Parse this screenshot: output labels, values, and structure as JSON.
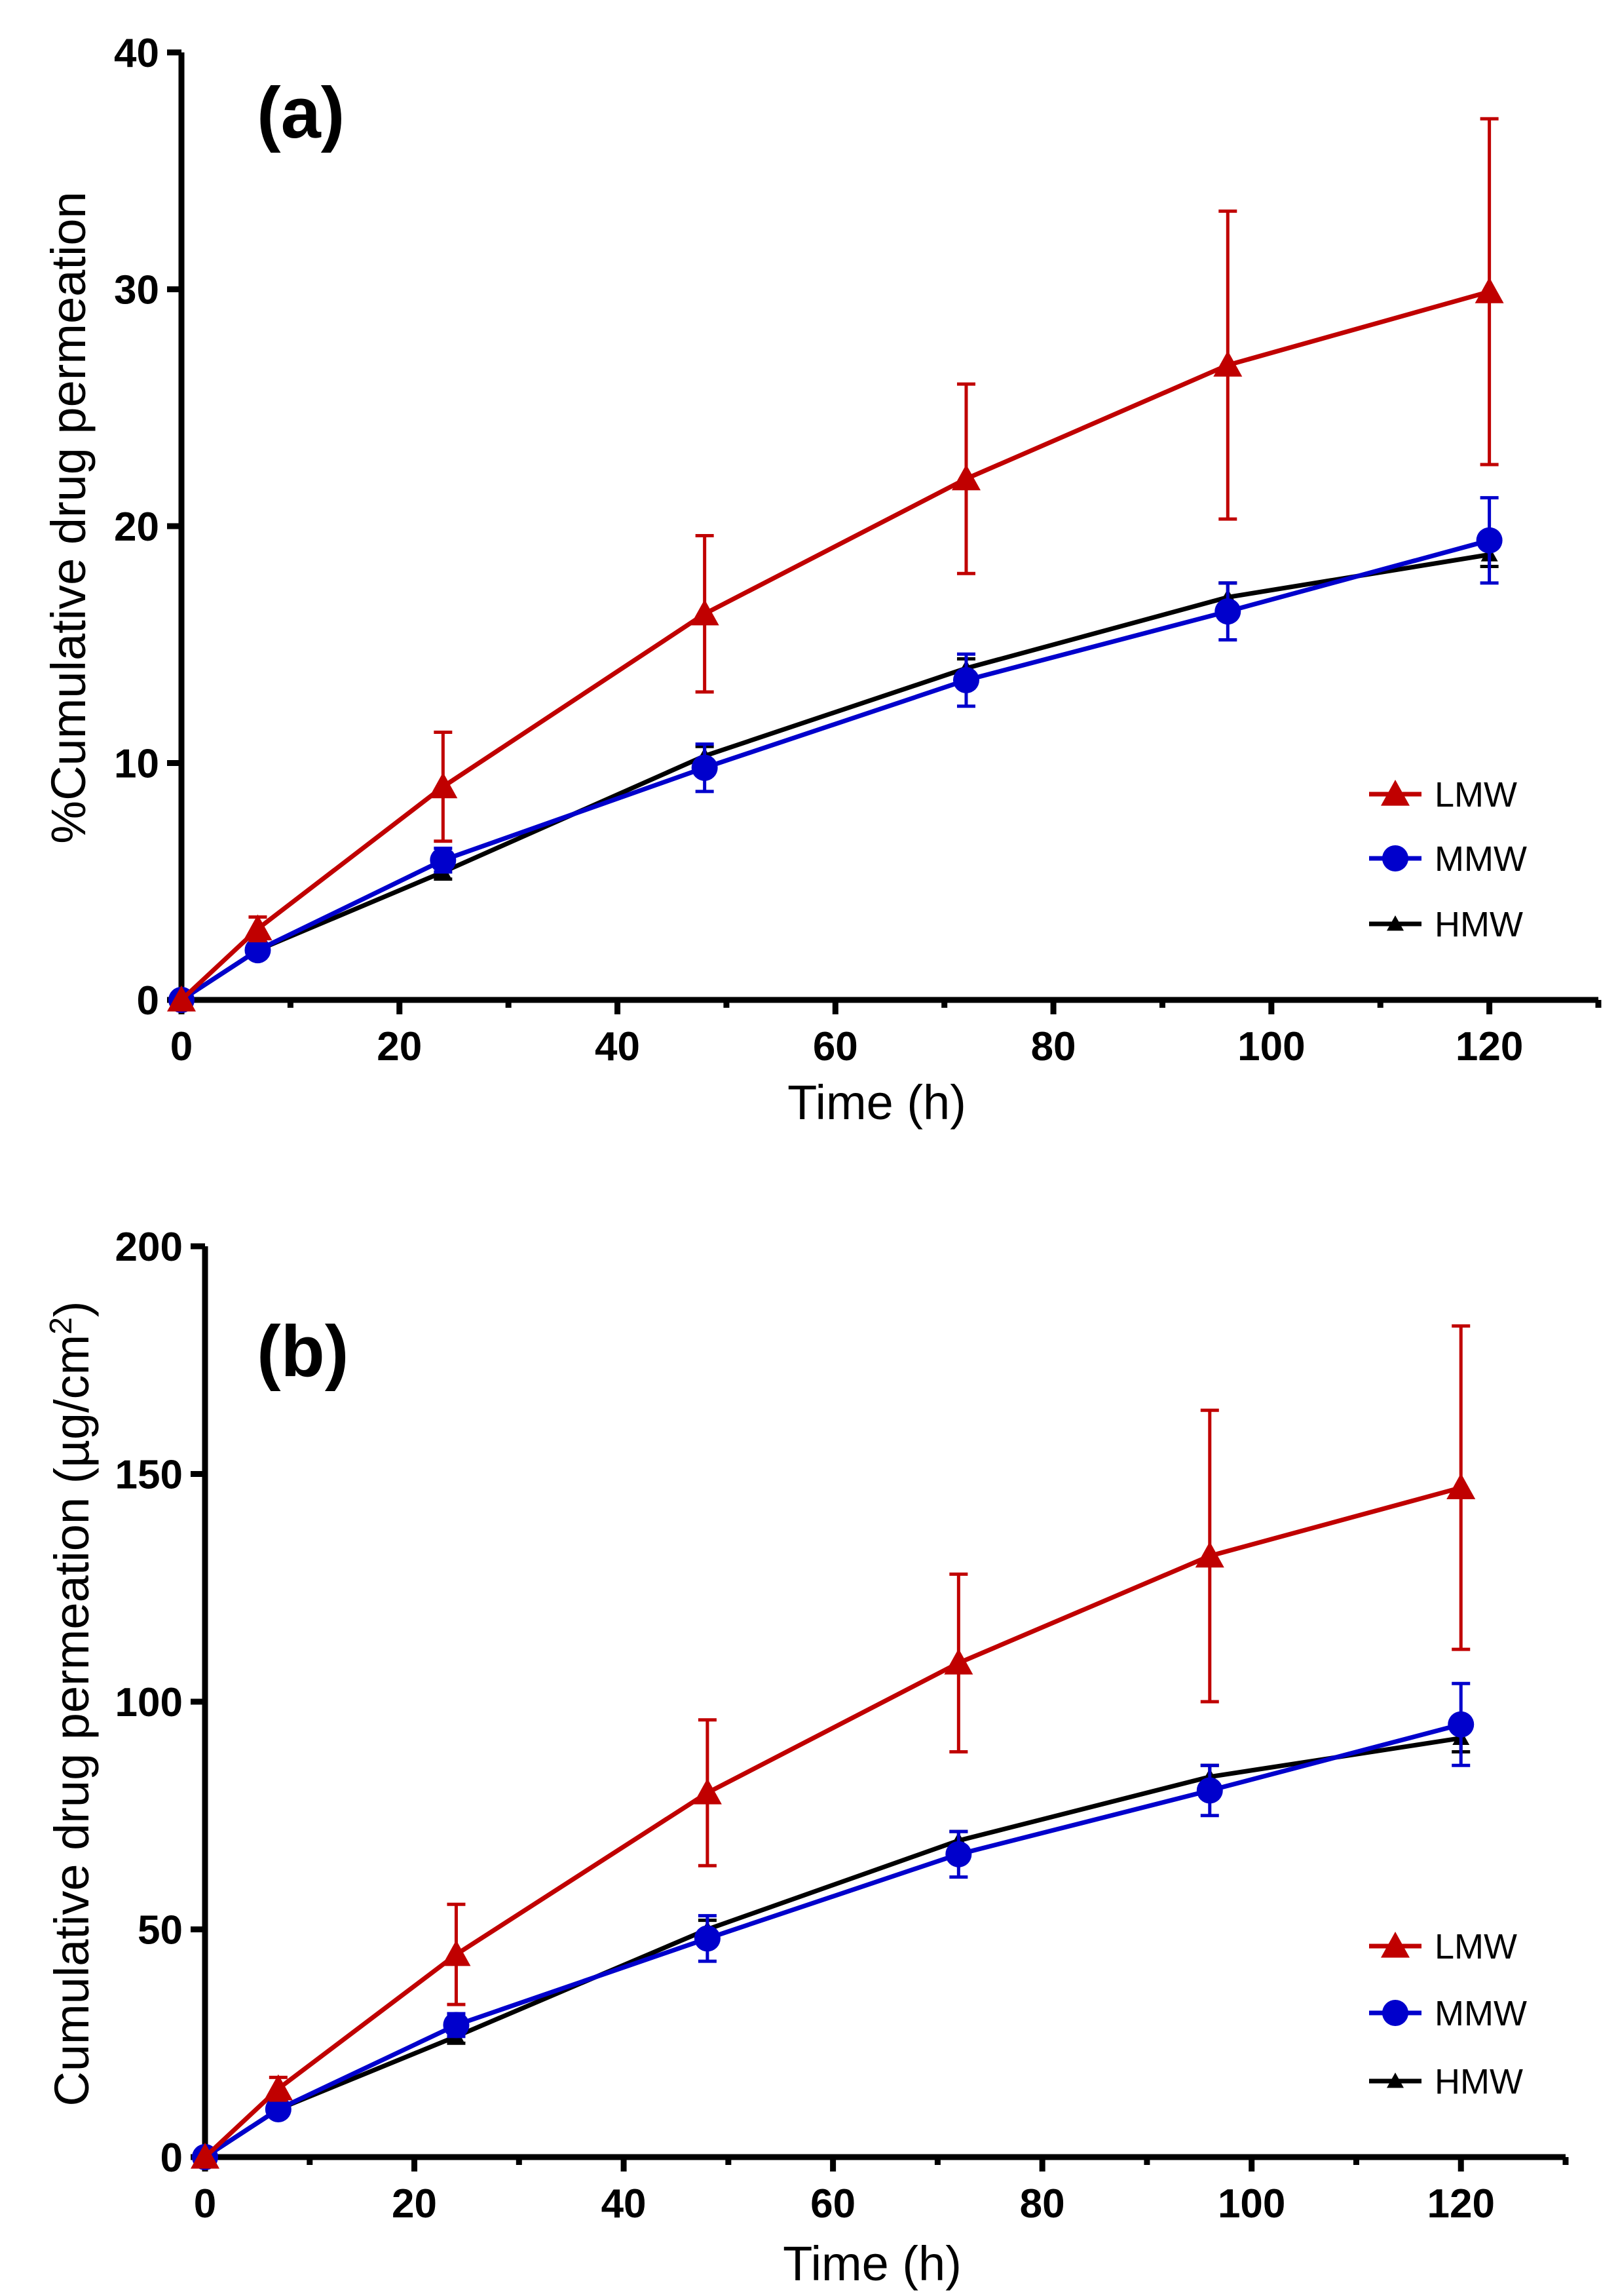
{
  "chart_data": [
    {
      "type": "line",
      "panel_label": "(a)",
      "xlabel": "Time (h)",
      "ylabel": "%Cumulative drug permeation",
      "xlim": [
        0,
        130
      ],
      "ylim": [
        0,
        40
      ],
      "xticks": [
        "0",
        "20",
        "40",
        "60",
        "80",
        "100",
        "120"
      ],
      "yticks": [
        "0",
        "10",
        "20",
        "30",
        "40"
      ],
      "grid": false,
      "legend": "right",
      "x": [
        0,
        7,
        24,
        48,
        72,
        96,
        120
      ],
      "series": [
        {
          "name": "LMW",
          "color": "#c00000",
          "marker": "triangle",
          "values": [
            0,
            3.0,
            9.0,
            16.3,
            22.0,
            26.8,
            29.9
          ],
          "errors": [
            0,
            0.5,
            2.3,
            3.3,
            4.0,
            6.5,
            7.3
          ]
        },
        {
          "name": "MMW",
          "color": "#0000cc",
          "marker": "circle",
          "values": [
            0,
            2.1,
            5.9,
            9.8,
            13.5,
            16.4,
            19.4
          ],
          "errors": [
            0,
            0.2,
            0.5,
            1.0,
            1.1,
            1.2,
            1.8
          ]
        },
        {
          "name": "HMW",
          "color": "#000000",
          "marker": "small-triangle",
          "values": [
            0,
            2.1,
            5.4,
            10.3,
            14.0,
            17.0,
            18.8
          ],
          "errors": [
            0,
            0.1,
            0.3,
            0.4,
            0.4,
            0.6,
            0.5
          ]
        }
      ]
    },
    {
      "type": "line",
      "panel_label": "(b)",
      "xlabel": "Time (h)",
      "ylabel": "Cumulative drug permeation (µg/cm",
      "ylabel_sup": "2",
      "ylabel_end": ")",
      "xlim": [
        0,
        130
      ],
      "ylim": [
        0,
        200
      ],
      "xticks": [
        "0",
        "20",
        "40",
        "60",
        "80",
        "100",
        "120"
      ],
      "yticks": [
        "0",
        "50",
        "100",
        "150",
        "200"
      ],
      "grid": false,
      "legend": "right",
      "x": [
        0,
        7,
        24,
        48,
        72,
        96,
        120
      ],
      "series": [
        {
          "name": "LMW",
          "color": "#c00000",
          "marker": "triangle",
          "values": [
            0,
            15,
            44.5,
            80,
            108.5,
            132,
            147
          ],
          "errors": [
            0,
            2.5,
            11,
            16,
            19.5,
            32,
            35.5
          ]
        },
        {
          "name": "MMW",
          "color": "#0000cc",
          "marker": "circle",
          "values": [
            0,
            10.5,
            29,
            48,
            66.5,
            80.5,
            95
          ],
          "errors": [
            0,
            1,
            2.5,
            5,
            5,
            5.5,
            9
          ]
        },
        {
          "name": "HMW",
          "color": "#000000",
          "marker": "small-triangle",
          "values": [
            0,
            10.5,
            26.5,
            50,
            69.5,
            83.5,
            92
          ],
          "errors": [
            0,
            0.5,
            1.5,
            2,
            2,
            2.5,
            3
          ]
        }
      ]
    }
  ]
}
